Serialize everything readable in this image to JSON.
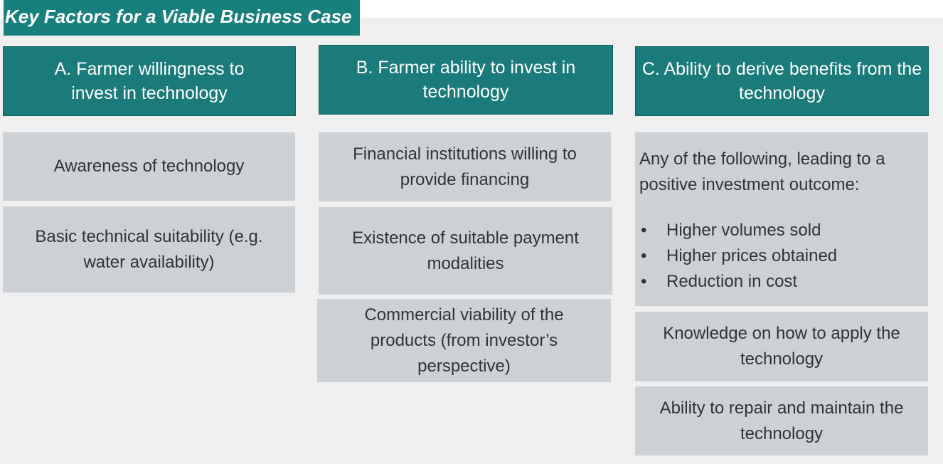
{
  "title": "Key Factors for a Viable Business Case",
  "columns": [
    {
      "header": "A. Farmer willingness to invest in technology",
      "items": [
        {
          "text": "Awareness of technology"
        },
        {
          "text": "Basic technical suitability (e.g. water availability)"
        }
      ]
    },
    {
      "header": "B. Farmer ability to invest in technology",
      "items": [
        {
          "text": "Financial institutions willing to provide financing"
        },
        {
          "text": "Existence of suitable payment modalities"
        },
        {
          "text": "Commercial viability of the products (from investor’s perspective)"
        }
      ]
    },
    {
      "header": "C. Ability to derive benefits from the technology",
      "items": [
        {
          "text": "Any of the following, leading to a positive investment outcome:",
          "bullets": [
            "Higher volumes sold",
            "Higher prices obtained",
            "Reduction in cost"
          ]
        },
        {
          "text": "Knowledge on how to apply the technology"
        },
        {
          "text": "Ability to repair and maintain the technology"
        }
      ]
    }
  ]
}
